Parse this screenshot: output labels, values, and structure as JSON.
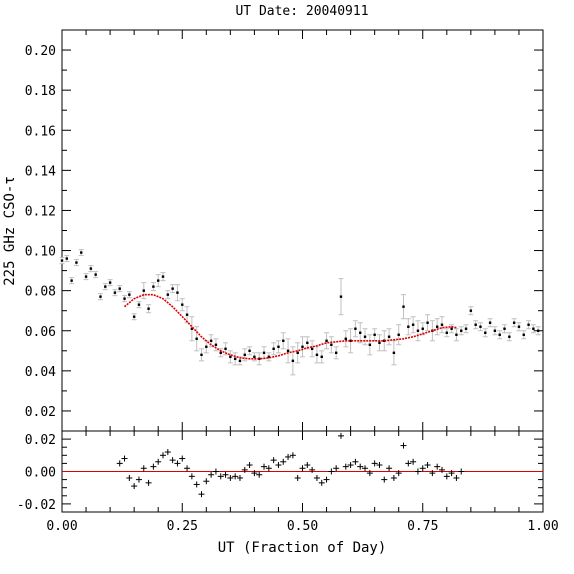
{
  "chart_data": [
    {
      "type": "scatter",
      "title": "UT Date: 20040911",
      "ylabel": "225 GHz CSO-τ",
      "xlabel": "",
      "xlim": [
        0.0,
        1.0
      ],
      "ylim": [
        0.01,
        0.21
      ],
      "x_ticks": [
        "0.00",
        "0.25",
        "0.50",
        "0.75",
        "1.00"
      ],
      "x_tick_values": [
        0.0,
        0.25,
        0.5,
        0.75,
        1.0
      ],
      "y_ticks": [
        "0.02",
        "0.04",
        "0.06",
        "0.08",
        "0.10",
        "0.12",
        "0.14",
        "0.16",
        "0.18",
        "0.20"
      ],
      "y_tick_values": [
        0.02,
        0.04,
        0.06,
        0.08,
        0.1,
        0.12,
        0.14,
        0.16,
        0.18,
        0.2
      ],
      "colors": {
        "points": "#000000",
        "error_bars": "#c0c0c0",
        "fit": "#dd0000"
      },
      "series": [
        {
          "kind": "points_with_error_bars",
          "x": [
            0.0,
            0.01,
            0.02,
            0.03,
            0.04,
            0.05,
            0.06,
            0.07,
            0.08,
            0.09,
            0.1,
            0.11,
            0.12,
            0.13,
            0.14,
            0.15,
            0.16,
            0.17,
            0.18,
            0.19,
            0.2,
            0.21,
            0.22,
            0.23,
            0.24,
            0.25,
            0.26,
            0.27,
            0.28,
            0.29,
            0.3,
            0.31,
            0.32,
            0.33,
            0.34,
            0.35,
            0.36,
            0.37,
            0.38,
            0.39,
            0.4,
            0.41,
            0.42,
            0.43,
            0.44,
            0.45,
            0.46,
            0.47,
            0.48,
            0.49,
            0.5,
            0.51,
            0.52,
            0.53,
            0.54,
            0.55,
            0.56,
            0.57,
            0.58,
            0.59,
            0.6,
            0.61,
            0.62,
            0.63,
            0.64,
            0.65,
            0.66,
            0.67,
            0.68,
            0.69,
            0.7,
            0.71,
            0.72,
            0.73,
            0.74,
            0.75,
            0.76,
            0.77,
            0.78,
            0.79,
            0.8,
            0.81,
            0.82,
            0.83,
            0.84,
            0.85,
            0.86,
            0.87,
            0.88,
            0.89,
            0.9,
            0.91,
            0.92,
            0.93,
            0.94,
            0.95,
            0.96,
            0.97,
            0.98,
            0.99
          ],
          "y": [
            0.095,
            0.096,
            0.085,
            0.094,
            0.099,
            0.087,
            0.091,
            0.088,
            0.077,
            0.082,
            0.084,
            0.079,
            0.081,
            0.076,
            0.078,
            0.067,
            0.073,
            0.08,
            0.071,
            0.082,
            0.085,
            0.087,
            0.078,
            0.081,
            0.079,
            0.073,
            0.068,
            0.061,
            0.056,
            0.048,
            0.052,
            0.055,
            0.053,
            0.049,
            0.051,
            0.047,
            0.046,
            0.045,
            0.048,
            0.05,
            0.047,
            0.046,
            0.049,
            0.047,
            0.051,
            0.052,
            0.055,
            0.05,
            0.045,
            0.049,
            0.052,
            0.054,
            0.051,
            0.048,
            0.047,
            0.055,
            0.053,
            0.049,
            0.077,
            0.056,
            0.055,
            0.061,
            0.059,
            0.057,
            0.053,
            0.058,
            0.054,
            0.055,
            0.057,
            0.049,
            0.058,
            0.072,
            0.062,
            0.063,
            0.06,
            0.061,
            0.064,
            0.06,
            0.062,
            0.063,
            0.059,
            0.061,
            0.058,
            0.06,
            0.061,
            0.07,
            0.063,
            0.062,
            0.059,
            0.064,
            0.06,
            0.058,
            0.061,
            0.057,
            0.064,
            0.062,
            0.058,
            0.063,
            0.061,
            0.06
          ],
          "err": [
            0.0015,
            0.0015,
            0.0015,
            0.0015,
            0.0015,
            0.0015,
            0.0015,
            0.0015,
            0.0015,
            0.0015,
            0.0015,
            0.0015,
            0.0015,
            0.0015,
            0.0015,
            0.0015,
            0.0015,
            0.004,
            0.002,
            0.002,
            0.003,
            0.002,
            0.002,
            0.002,
            0.004,
            0.003,
            0.004,
            0.006,
            0.006,
            0.003,
            0.003,
            0.003,
            0.003,
            0.002,
            0.003,
            0.003,
            0.003,
            0.002,
            0.003,
            0.002,
            0.002,
            0.003,
            0.003,
            0.002,
            0.003,
            0.003,
            0.004,
            0.006,
            0.007,
            0.005,
            0.005,
            0.003,
            0.004,
            0.004,
            0.003,
            0.004,
            0.004,
            0.003,
            0.009,
            0.004,
            0.006,
            0.004,
            0.005,
            0.004,
            0.005,
            0.003,
            0.004,
            0.005,
            0.004,
            0.006,
            0.005,
            0.006,
            0.004,
            0.004,
            0.005,
            0.003,
            0.004,
            0.005,
            0.004,
            0.004,
            0.002,
            0.002,
            0.003,
            0.002,
            0.002,
            0.002,
            0.002,
            0.002,
            0.002,
            0.002,
            0.002,
            0.002,
            0.002,
            0.002,
            0.002,
            0.002,
            0.002,
            0.002,
            0.002,
            0.002
          ]
        },
        {
          "kind": "fit_curve",
          "x": [
            0.13,
            0.15,
            0.17,
            0.19,
            0.21,
            0.23,
            0.25,
            0.27,
            0.29,
            0.31,
            0.33,
            0.35,
            0.37,
            0.39,
            0.41,
            0.43,
            0.45,
            0.47,
            0.49,
            0.51,
            0.53,
            0.55,
            0.57,
            0.59,
            0.61,
            0.63,
            0.65,
            0.67,
            0.69,
            0.71,
            0.73,
            0.75,
            0.77,
            0.79,
            0.81,
            0.82
          ],
          "y": [
            0.072,
            0.076,
            0.078,
            0.078,
            0.076,
            0.072,
            0.067,
            0.062,
            0.057,
            0.053,
            0.05,
            0.048,
            0.0465,
            0.046,
            0.046,
            0.0465,
            0.0475,
            0.049,
            0.05,
            0.0515,
            0.0525,
            0.054,
            0.0545,
            0.055,
            0.055,
            0.055,
            0.055,
            0.055,
            0.0555,
            0.056,
            0.057,
            0.0585,
            0.06,
            0.0615,
            0.062,
            0.0615
          ]
        }
      ]
    },
    {
      "type": "scatter",
      "title": "",
      "xlabel": "UT (Fraction of Day)",
      "ylabel": "",
      "xlim": [
        0.0,
        1.0
      ],
      "ylim": [
        -0.025,
        0.025
      ],
      "x_ticks": [
        "0.00",
        "0.25",
        "0.50",
        "0.75",
        "1.00"
      ],
      "x_tick_values": [
        0.0,
        0.25,
        0.5,
        0.75,
        1.0
      ],
      "y_ticks": [
        "-0.02",
        "0.00",
        "0.02"
      ],
      "y_tick_values": [
        -0.02,
        0.0,
        0.02
      ],
      "reference_line": 0.0,
      "colors": {
        "points": "#000000",
        "reference_line": "#dd0000"
      },
      "series": [
        {
          "kind": "residuals",
          "x": [
            0.12,
            0.13,
            0.14,
            0.15,
            0.16,
            0.17,
            0.18,
            0.19,
            0.2,
            0.21,
            0.22,
            0.23,
            0.24,
            0.25,
            0.26,
            0.27,
            0.28,
            0.29,
            0.3,
            0.31,
            0.32,
            0.33,
            0.34,
            0.35,
            0.36,
            0.37,
            0.38,
            0.39,
            0.4,
            0.41,
            0.42,
            0.43,
            0.44,
            0.45,
            0.46,
            0.47,
            0.48,
            0.49,
            0.5,
            0.51,
            0.52,
            0.53,
            0.54,
            0.55,
            0.56,
            0.57,
            0.58,
            0.59,
            0.6,
            0.61,
            0.62,
            0.63,
            0.64,
            0.65,
            0.66,
            0.67,
            0.68,
            0.69,
            0.7,
            0.71,
            0.72,
            0.73,
            0.74,
            0.75,
            0.76,
            0.77,
            0.78,
            0.79,
            0.8,
            0.81,
            0.82,
            0.83
          ],
          "y": [
            0.005,
            0.008,
            -0.004,
            -0.009,
            -0.005,
            0.002,
            -0.007,
            0.003,
            0.006,
            0.01,
            0.012,
            0.007,
            0.005,
            0.008,
            0.002,
            -0.003,
            -0.008,
            -0.014,
            -0.006,
            -0.002,
            0.0,
            -0.003,
            -0.002,
            -0.004,
            -0.003,
            -0.004,
            0.001,
            0.004,
            -0.001,
            -0.002,
            0.003,
            0.002,
            0.007,
            0.004,
            0.006,
            0.009,
            0.01,
            -0.004,
            0.002,
            0.004,
            0.001,
            -0.004,
            -0.007,
            -0.005,
            0.0,
            0.002,
            0.022,
            0.003,
            0.004,
            0.006,
            0.003,
            0.002,
            -0.001,
            0.005,
            0.004,
            -0.005,
            0.002,
            -0.004,
            -0.001,
            0.016,
            0.005,
            0.006,
            0.0,
            0.002,
            0.004,
            -0.001,
            0.003,
            0.001,
            -0.003,
            -0.001,
            -0.004,
            0.0
          ]
        }
      ]
    }
  ]
}
